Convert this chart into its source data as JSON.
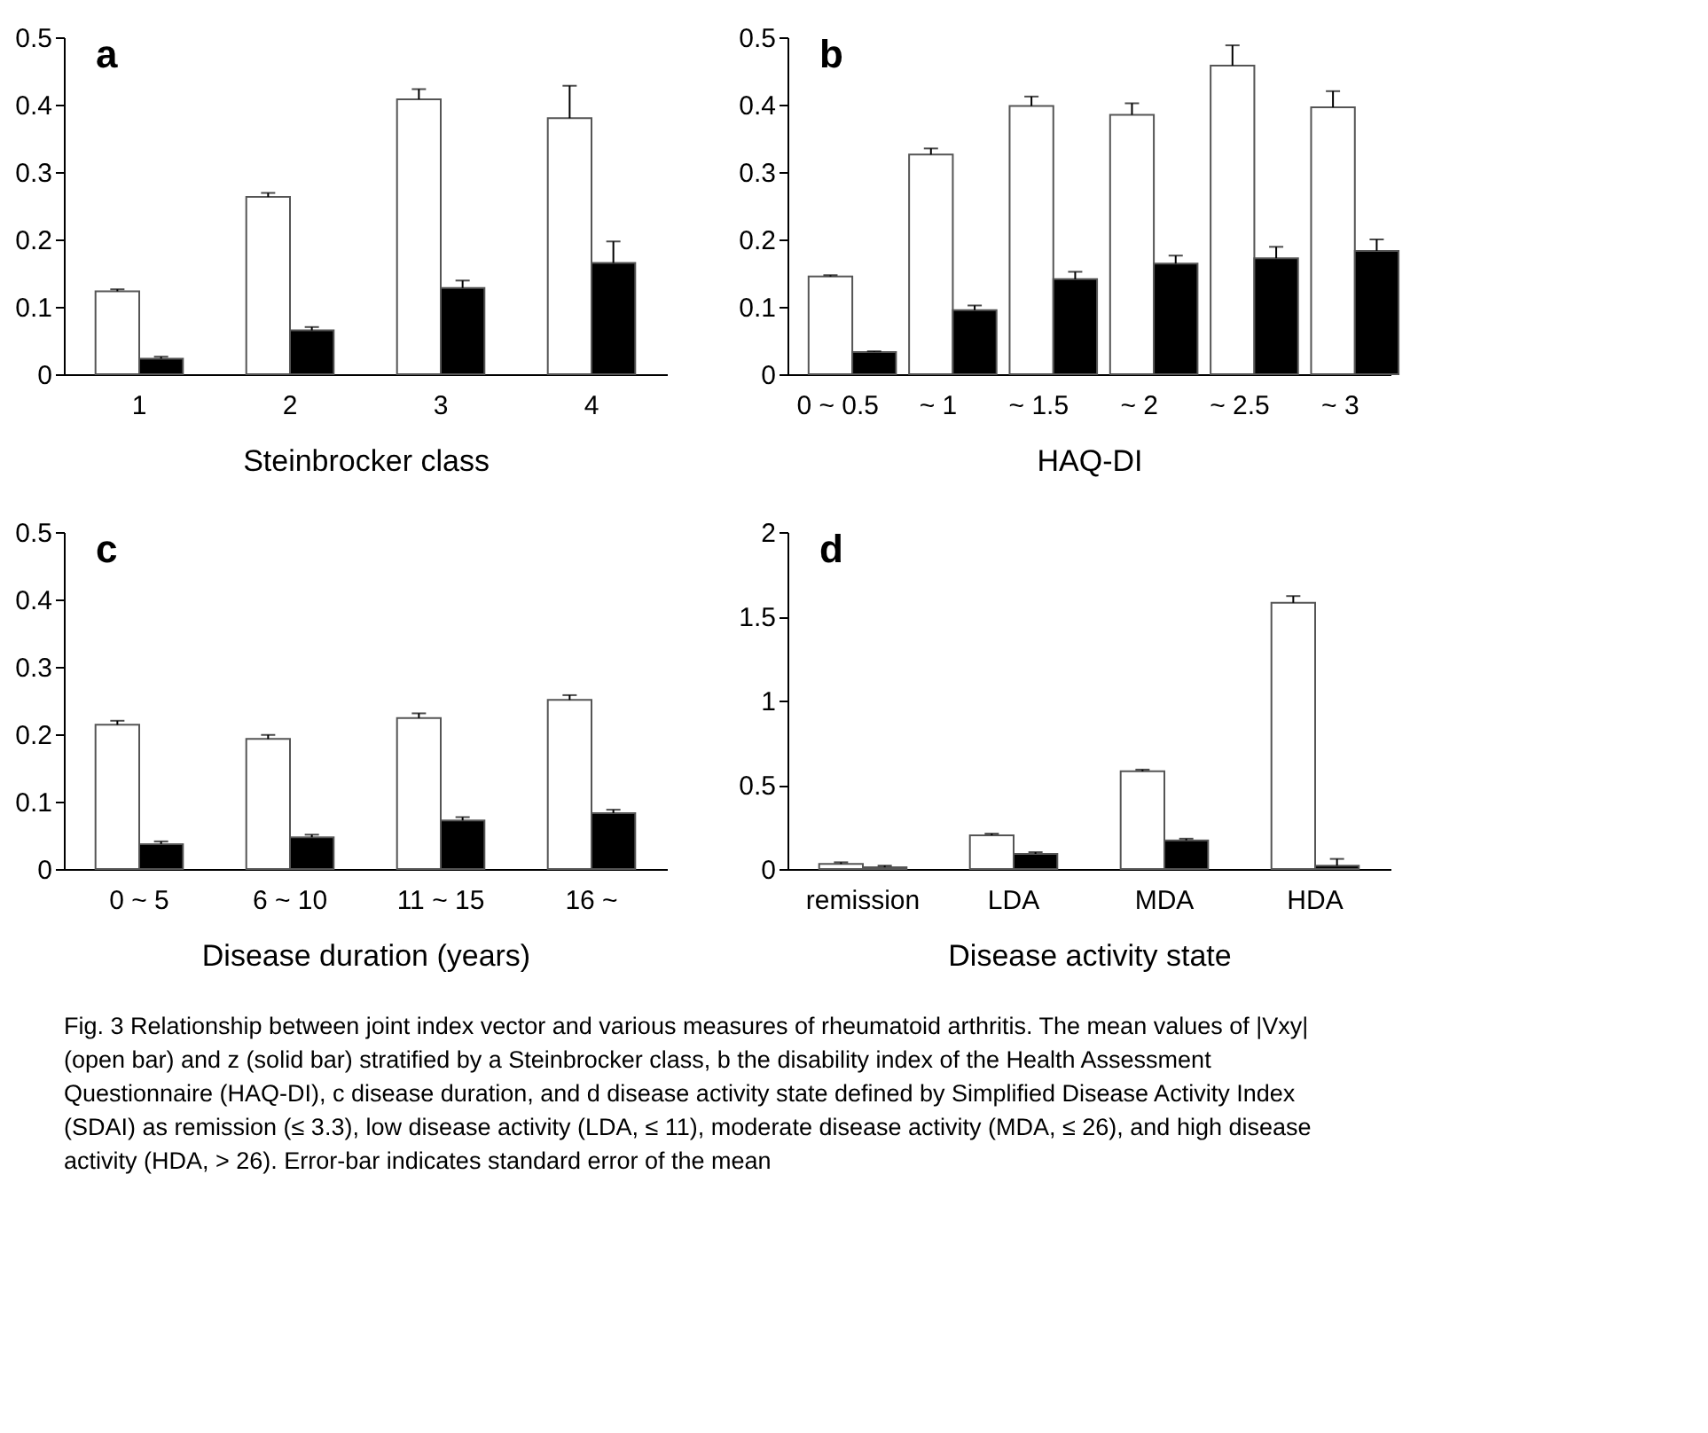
{
  "chart_data": [
    {
      "type": "bar",
      "title": "a",
      "xlabel": "Steinbrocker class",
      "categories": [
        "1",
        "2",
        "3",
        "4"
      ],
      "ylim": [
        0,
        0.5
      ],
      "yticks": [
        0,
        0.1,
        0.2,
        0.3,
        0.4,
        0.5
      ],
      "grid": false,
      "series": [
        {
          "color": "#ffffff",
          "values": [
            0.123,
            0.263,
            0.408,
            0.38
          ],
          "errors": [
            0.003,
            0.006,
            0.015,
            0.048
          ]
        },
        {
          "color": "#000000",
          "values": [
            0.023,
            0.065,
            0.128,
            0.165
          ],
          "errors": [
            0.003,
            0.005,
            0.011,
            0.032
          ]
        }
      ]
    },
    {
      "type": "bar",
      "title": "b",
      "xlabel": "HAQ-DI",
      "categories": [
        "0 ~ 0.5",
        "~ 1",
        "~ 1.5",
        "~ 2",
        "~ 2.5",
        "~ 3"
      ],
      "ylim": [
        0,
        0.5
      ],
      "yticks": [
        0,
        0.1,
        0.2,
        0.3,
        0.4,
        0.5
      ],
      "grid": false,
      "series": [
        {
          "color": "#ffffff",
          "values": [
            0.145,
            0.326,
            0.398,
            0.385,
            0.458,
            0.396
          ],
          "errors": [
            0.002,
            0.009,
            0.014,
            0.017,
            0.03,
            0.024
          ]
        },
        {
          "color": "#000000",
          "values": [
            0.033,
            0.095,
            0.141,
            0.164,
            0.172,
            0.183
          ],
          "errors": [
            0.001,
            0.007,
            0.011,
            0.012,
            0.017,
            0.017
          ]
        }
      ]
    },
    {
      "type": "bar",
      "title": "c",
      "xlabel": "Disease duration (years)",
      "categories": [
        "0 ~ 5",
        "6 ~ 10",
        "11 ~ 15",
        "16 ~"
      ],
      "ylim": [
        0,
        0.5
      ],
      "yticks": [
        0,
        0.1,
        0.2,
        0.3,
        0.4,
        0.5
      ],
      "grid": false,
      "series": [
        {
          "color": "#ffffff",
          "values": [
            0.214,
            0.193,
            0.224,
            0.251
          ],
          "errors": [
            0.006,
            0.006,
            0.007,
            0.007
          ]
        },
        {
          "color": "#000000",
          "values": [
            0.037,
            0.047,
            0.072,
            0.083
          ],
          "errors": [
            0.004,
            0.004,
            0.005,
            0.005
          ]
        }
      ]
    },
    {
      "type": "bar",
      "title": "d",
      "xlabel": "Disease activity state",
      "categories": [
        "remission",
        "LDA",
        "MDA",
        "HDA"
      ],
      "ylim": [
        0,
        2
      ],
      "yticks": [
        0,
        0.5,
        1,
        1.5,
        2
      ],
      "grid": false,
      "series": [
        {
          "color": "#ffffff",
          "values": [
            0.03,
            0.2,
            0.58,
            1.58
          ],
          "errors": [
            0.01,
            0.01,
            0.01,
            0.04
          ]
        },
        {
          "color": "#000000",
          "values": [
            0.01,
            0.09,
            0.17,
            0.02
          ],
          "errors": [
            0.01,
            0.01,
            0.01,
            0.04
          ]
        }
      ],
      "annotations": [
        "Fig. 3 Relationship between joint index vector and various measures of rheumatoid arthritis. The mean values of |Vxy| (open bar) and z (solid bar) stratified by a Steinbrocker class, b the disability index of the Health Assessment Questionnaire (HAQ-DI), c disease duration, and d disease activity state defined by Simplified Disease Activity Index (SDAI) as remission (≤ 3.3), low disease activity (LDA, ≤ 11), moderate disease activity (MDA, ≤ 26), and high disease activity (HDA, > 26). Error-bar indicates standard error of the mean"
      ]
    }
  ]
}
